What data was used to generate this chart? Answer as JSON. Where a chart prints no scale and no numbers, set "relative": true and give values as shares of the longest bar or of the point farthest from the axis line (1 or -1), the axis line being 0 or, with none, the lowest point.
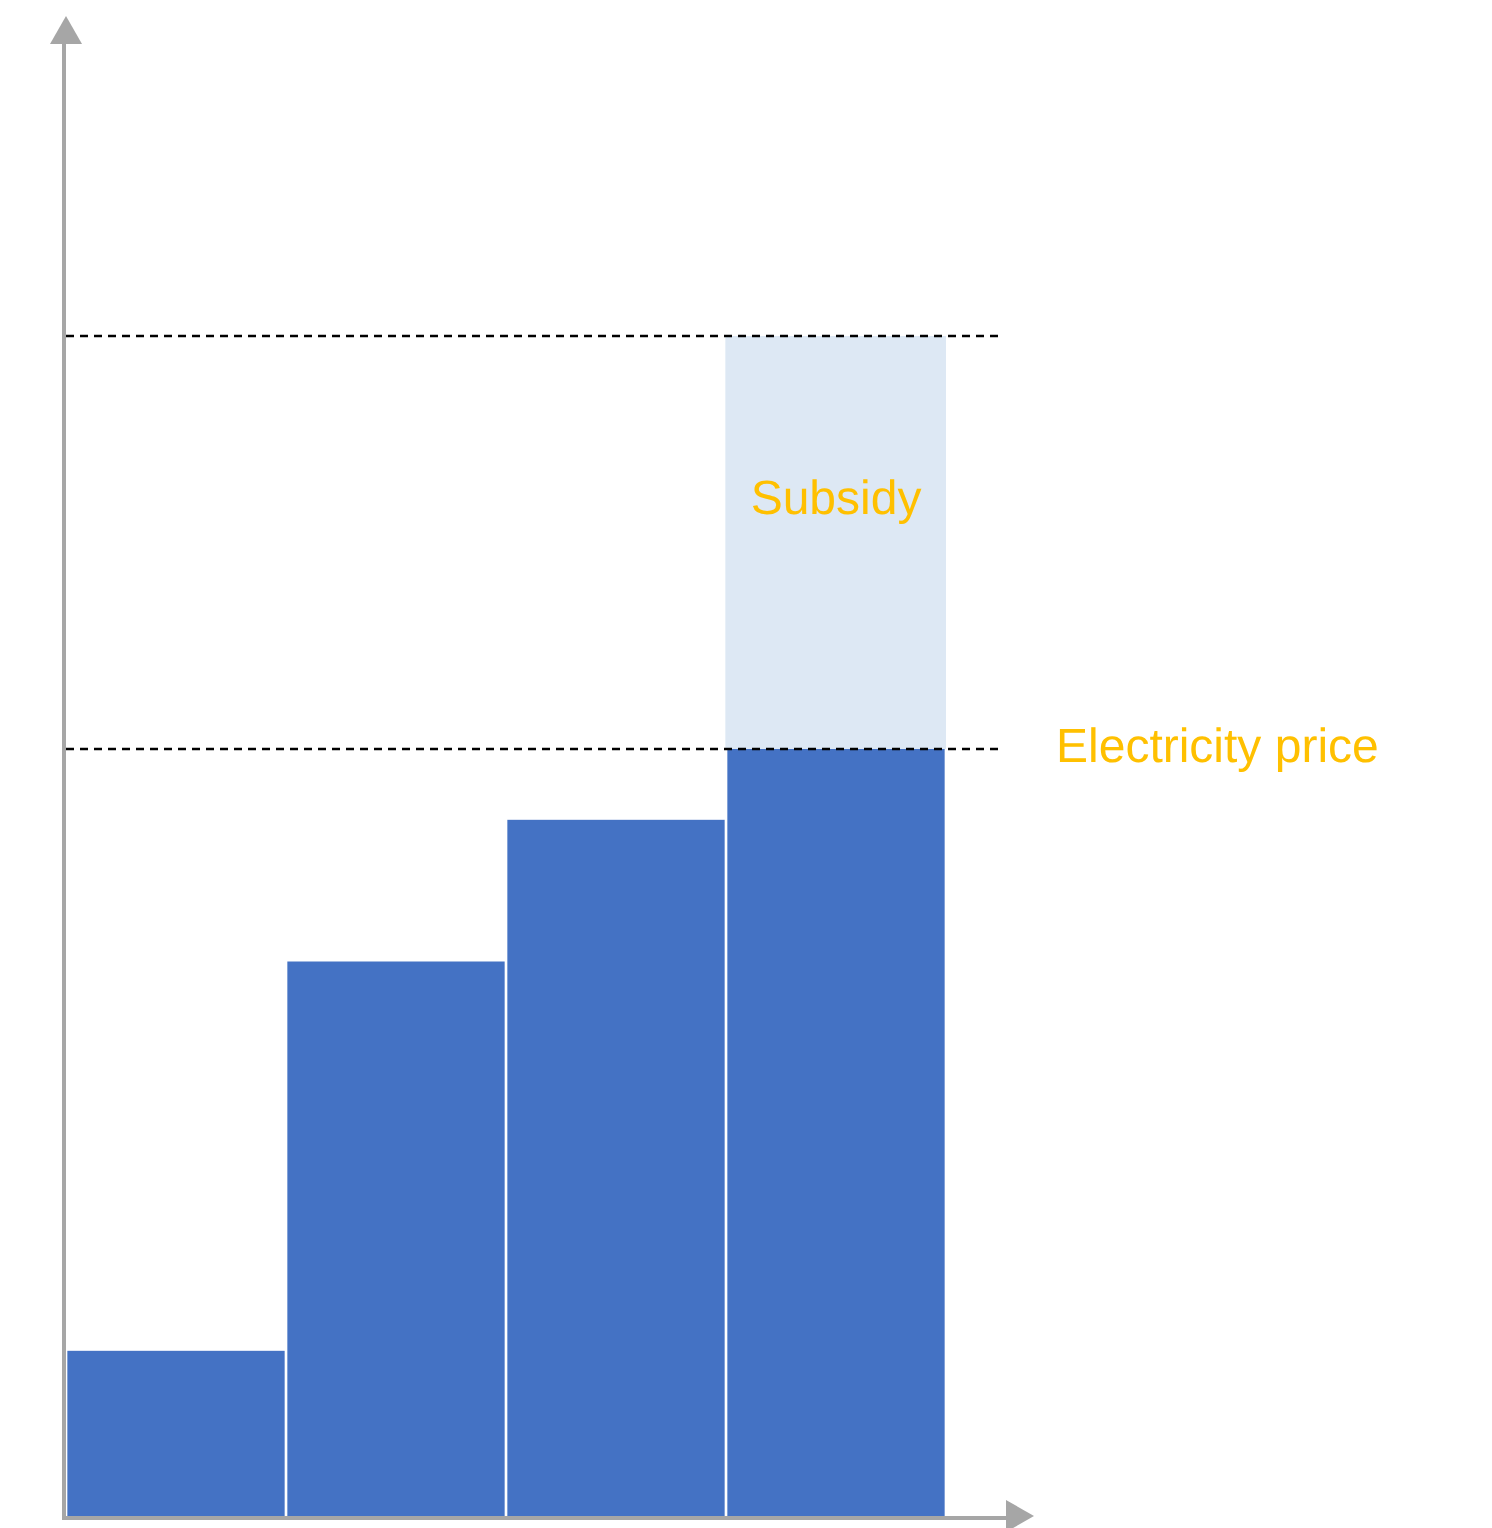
{
  "chart_data": {
    "type": "bar",
    "relative": true,
    "stacked": true,
    "categories": [
      null,
      null,
      null,
      null
    ],
    "series": [
      {
        "color": "#4472c4",
        "values": [
          0.14,
          0.47,
          0.59,
          0.65
        ]
      },
      {
        "color": "#dde8f4",
        "values": [
          null,
          null,
          null,
          0.35
        ]
      }
    ],
    "ref_lines": [
      {
        "axis": "y",
        "value": 1.0,
        "color": "#000000",
        "line_style": "dashed"
      },
      {
        "axis": "y",
        "value": 0.65,
        "label": "Electricity price",
        "color": "#000000",
        "line_style": "dashed"
      }
    ],
    "annotations": [
      "Subsidy"
    ],
    "legend": false
  }
}
